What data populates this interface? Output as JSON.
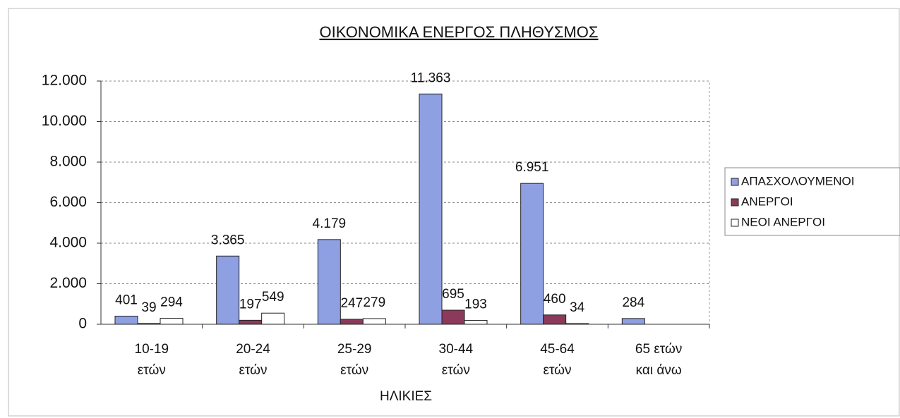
{
  "chart_data": {
    "type": "bar",
    "title": "ΟΙΚΟΝΟΜΙΚΑ ΕΝΕΡΓΟΣ ΠΛΗΘΥΣΜΟΣ",
    "x_label": "ΗΛΙΚΙΕΣ",
    "categories": [
      [
        "10-19",
        "ετών"
      ],
      [
        "20-24",
        "ετών"
      ],
      [
        "25-29",
        "ετών"
      ],
      [
        "30-44",
        "ετών"
      ],
      [
        "45-64",
        "ετών"
      ],
      [
        "65 ετών",
        "και άνω"
      ]
    ],
    "series": [
      {
        "name": "ΑΠΑΣΧΟΛΟΥΜΕΝΟΙ",
        "color": "#8fa0e2",
        "values": [
          401,
          3365,
          4179,
          11363,
          6951,
          284
        ],
        "value_labels": [
          "401",
          "3.365",
          "4.179",
          "11.363",
          "6.951",
          "284"
        ]
      },
      {
        "name": "ΑΝΕΡΓΟΙ",
        "color": "#8c3a5c",
        "values": [
          39,
          197,
          247,
          695,
          460,
          null
        ],
        "value_labels": [
          "39",
          "197",
          "247",
          "695",
          "460",
          null
        ]
      },
      {
        "name": "ΝΕΟΙ ΑΝΕΡΓΟΙ",
        "color": "#ffffff",
        "values": [
          294,
          549,
          279,
          193,
          34,
          null
        ],
        "value_labels": [
          "294",
          "549",
          "279",
          "193",
          "34",
          null
        ]
      }
    ],
    "ylim": [
      0,
      12000
    ],
    "yticks": [
      0,
      {
        "value": 2000,
        "label": "2.000"
      },
      {
        "value": 4000,
        "label": "4.000"
      },
      {
        "value": 6000,
        "label": "6.000"
      },
      {
        "value": 8000,
        "label": "8.000"
      },
      {
        "value": 10000,
        "label": "10.000"
      },
      {
        "value": 12000,
        "label": "12.000"
      }
    ],
    "grid": true,
    "legend": "right"
  }
}
